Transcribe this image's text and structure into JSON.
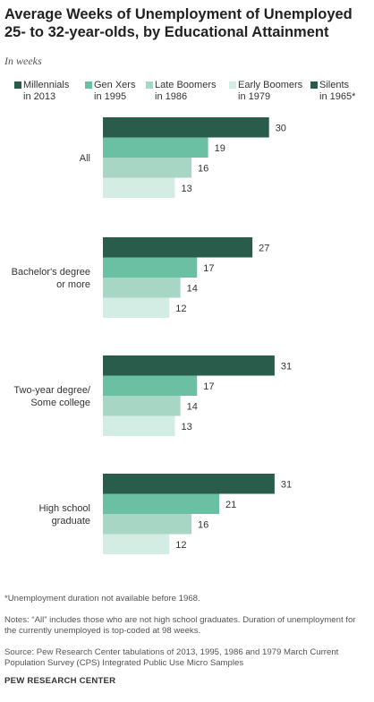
{
  "title": "Average Weeks of Unemployment of Unemployed 25- to 32-year-olds, by Educational Attainment",
  "subtitle": "In weeks",
  "colors": [
    "#2a5c4b",
    "#6bbfa3",
    "#a8d6c5",
    "#d3ece4",
    "#2a5c4b"
  ],
  "chart_data": {
    "type": "bar",
    "orientation": "horizontal",
    "title": "Average Weeks of Unemployment of Unemployed 25- to 32-year-olds, by Educational Attainment",
    "subtitle": "In weeks",
    "categories": [
      "All",
      "Bachelor's degree\nor more",
      "Two-year degree/\nSome college",
      "High school\ngraduate"
    ],
    "series": [
      {
        "name": "Millennials\nin 2013",
        "values": [
          30,
          27,
          31,
          31
        ]
      },
      {
        "name": "Gen Xers\nin 1995",
        "values": [
          19,
          17,
          17,
          21
        ]
      },
      {
        "name": "Late Boomers\nin 1986",
        "values": [
          16,
          14,
          14,
          16
        ]
      },
      {
        "name": "Early Boomers\nin 1979",
        "values": [
          13,
          12,
          13,
          12
        ]
      },
      {
        "name": "Silents\nin 1965*",
        "values": [
          null,
          null,
          null,
          null
        ]
      }
    ],
    "xlim": [
      0,
      31
    ],
    "grid": false,
    "legend": "top"
  },
  "notes": {
    "asterisk": "*Unemployment duration not available before 1968.",
    "note": "Notes: “All” includes those who are not high school graduates. Duration of unemployment for the currently unemployed is top-coded at 98 weeks.",
    "source": "Source: Pew Research Center tabulations of 2013, 1995, 1986 and 1979 March Current Population Survey (CPS) Integrated Public Use Micro Samples"
  },
  "footer": "PEW RESEARCH CENTER"
}
